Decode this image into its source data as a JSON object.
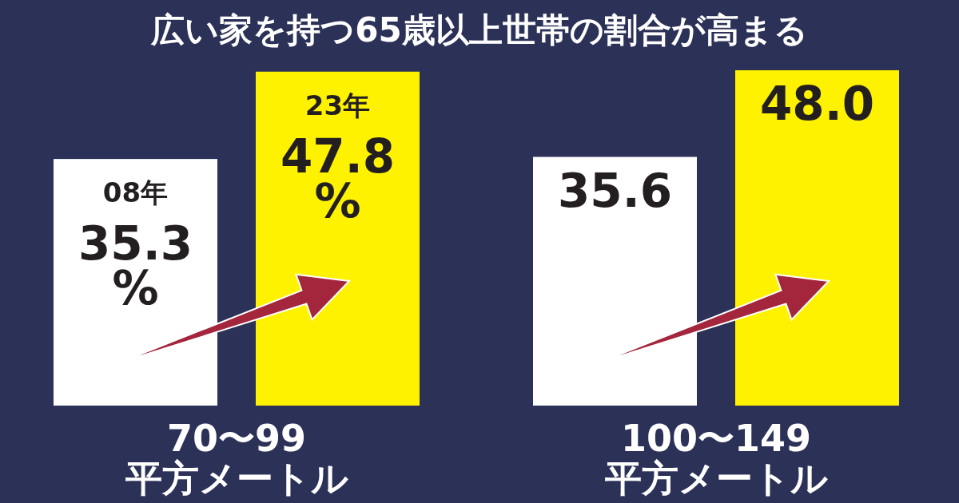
{
  "chart_data": {
    "type": "bar",
    "title": "広い家を持つ65歳以上世帯の割合が高まる",
    "categories": [
      "70〜99\n平方メートル",
      "100〜149\n平方メートル"
    ],
    "series": [
      {
        "name": "08年",
        "color": "#ffffff",
        "values": [
          35.3,
          35.6
        ],
        "value_labels": [
          "35.3\n%",
          "35.6"
        ]
      },
      {
        "name": "23年",
        "color": "#fff200",
        "values": [
          47.8,
          48.0
        ],
        "value_labels": [
          "47.8\n%",
          "48.0"
        ]
      }
    ]
  }
}
